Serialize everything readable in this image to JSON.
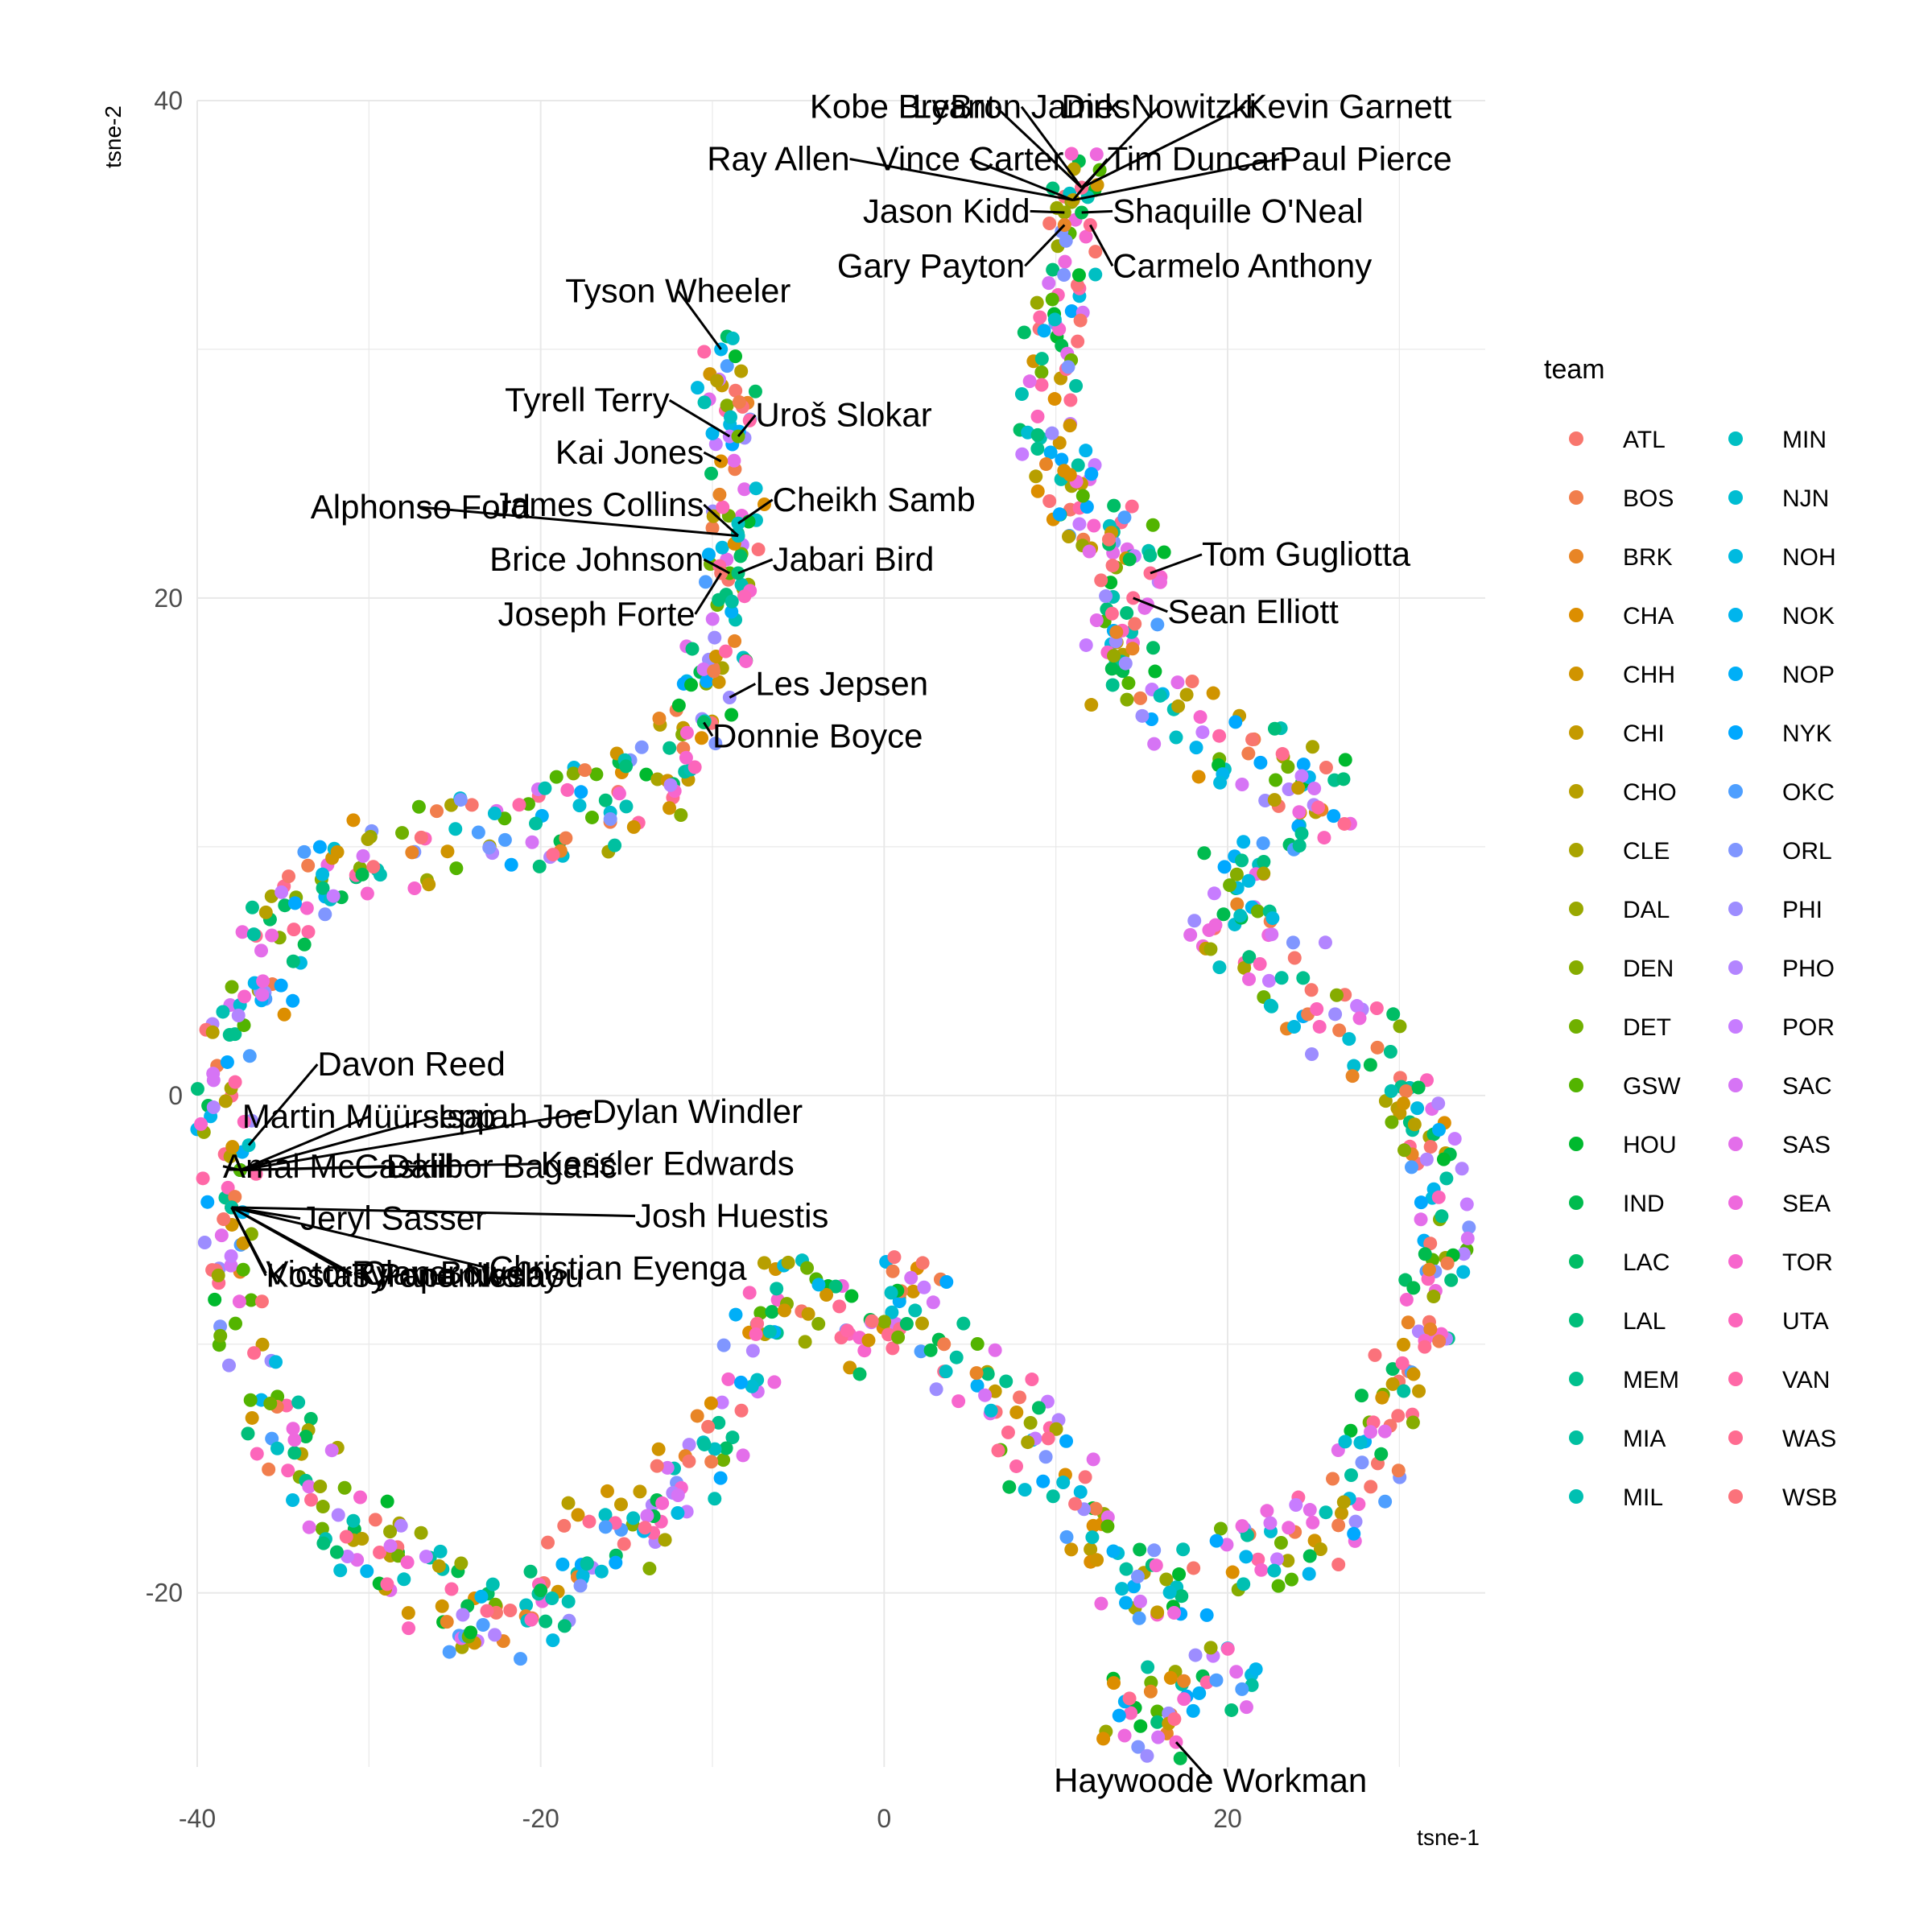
{
  "chart_data": {
    "type": "scatter",
    "xlabel": "tsne-1",
    "ylabel": "tsne-2",
    "xlim": [
      -40,
      35
    ],
    "ylim": [
      -27,
      40
    ],
    "xticks": [
      -40,
      -20,
      0,
      20
    ],
    "yticks": [
      -20,
      0,
      20,
      40
    ],
    "grid": true,
    "legend": {
      "title": "team",
      "placement": "right",
      "columns": 2
    },
    "teams": [
      {
        "name": "ATL",
        "color": "#F8766D"
      },
      {
        "name": "BOS",
        "color": "#F17E4D"
      },
      {
        "name": "BRK",
        "color": "#E88526"
      },
      {
        "name": "CHA",
        "color": "#DC8E00"
      },
      {
        "name": "CHH",
        "color": "#D09400"
      },
      {
        "name": "CHI",
        "color": "#C49A00"
      },
      {
        "name": "CHO",
        "color": "#B79F00"
      },
      {
        "name": "CLE",
        "color": "#A9A400"
      },
      {
        "name": "DAL",
        "color": "#99A800"
      },
      {
        "name": "DEN",
        "color": "#86AC00"
      },
      {
        "name": "DET",
        "color": "#70B000"
      },
      {
        "name": "GSW",
        "color": "#53B400"
      },
      {
        "name": "HOU",
        "color": "#00B92E"
      },
      {
        "name": "IND",
        "color": "#00BB4E"
      },
      {
        "name": "LAC",
        "color": "#00BD65"
      },
      {
        "name": "LAL",
        "color": "#00BE7A"
      },
      {
        "name": "MEM",
        "color": "#00C08D"
      },
      {
        "name": "MIA",
        "color": "#00C0A0"
      },
      {
        "name": "MIL",
        "color": "#00C0B2"
      },
      {
        "name": "MIN",
        "color": "#00BFC3"
      },
      {
        "name": "NJN",
        "color": "#00BDD2"
      },
      {
        "name": "NOH",
        "color": "#00BAE0"
      },
      {
        "name": "NOK",
        "color": "#00B5ED"
      },
      {
        "name": "NOP",
        "color": "#00AFF7"
      },
      {
        "name": "NYK",
        "color": "#00A8FF"
      },
      {
        "name": "OKC",
        "color": "#4E9FFF"
      },
      {
        "name": "ORL",
        "color": "#8096FF"
      },
      {
        "name": "PHI",
        "color": "#9D8DFF"
      },
      {
        "name": "PHO",
        "color": "#B385FF"
      },
      {
        "name": "POR",
        "color": "#C77CFF"
      },
      {
        "name": "SAC",
        "color": "#D674F5"
      },
      {
        "name": "SAS",
        "color": "#E36EEA"
      },
      {
        "name": "SEA",
        "color": "#EE69DD"
      },
      {
        "name": "TOR",
        "color": "#F766CD"
      },
      {
        "name": "UTA",
        "color": "#FC66BB"
      },
      {
        "name": "VAN",
        "color": "#FF68A7"
      },
      {
        "name": "WAS",
        "color": "#FF6C91"
      },
      {
        "name": "WSB",
        "color": "#FB727B"
      }
    ],
    "path_points": [
      [
        11.5,
        37
      ],
      [
        11,
        35
      ],
      [
        10.5,
        33
      ],
      [
        10,
        31
      ],
      [
        9.5,
        29
      ],
      [
        9.5,
        27
      ],
      [
        10,
        25
      ],
      [
        11,
        24
      ],
      [
        13,
        23.5
      ],
      [
        14.5,
        22
      ],
      [
        15,
        20.5
      ],
      [
        14,
        19
      ],
      [
        13,
        17.5
      ],
      [
        15,
        16
      ],
      [
        18,
        15
      ],
      [
        21,
        14
      ],
      [
        24,
        13
      ],
      [
        26,
        12
      ],
      [
        24,
        10
      ],
      [
        21,
        9
      ],
      [
        19,
        7.5
      ],
      [
        21,
        6
      ],
      [
        23.5,
        5
      ],
      [
        26,
        3.5
      ],
      [
        29,
        2
      ],
      [
        30.5,
        0
      ],
      [
        31.5,
        -2
      ],
      [
        32.5,
        -4
      ],
      [
        33,
        -6
      ],
      [
        32,
        -8
      ],
      [
        31,
        -10
      ],
      [
        30,
        -12
      ],
      [
        29,
        -14
      ],
      [
        27,
        -16
      ],
      [
        25,
        -17.5
      ],
      [
        22,
        -18.5
      ],
      [
        19,
        -19
      ],
      [
        16,
        -19.5
      ],
      [
        14,
        -19
      ],
      [
        12,
        -17
      ],
      [
        10,
        -15
      ],
      [
        8,
        -13.5
      ],
      [
        6,
        -12
      ],
      [
        4,
        -10
      ],
      [
        2,
        -8
      ],
      [
        0,
        -9
      ],
      [
        -2,
        -10
      ],
      [
        -4,
        -9
      ],
      [
        -6,
        -8
      ],
      [
        -8,
        -10.5
      ],
      [
        -9,
        -13
      ],
      [
        -11,
        -15
      ],
      [
        -13,
        -16.5
      ],
      [
        -15,
        -17.5
      ],
      [
        -17,
        -18
      ],
      [
        -19,
        -19.5
      ],
      [
        -21,
        -21
      ],
      [
        -23,
        -21.5
      ],
      [
        -25,
        -20.5
      ],
      [
        -27,
        -19.5
      ],
      [
        -29,
        -18.5
      ],
      [
        -31,
        -17.5
      ],
      [
        -33,
        -16
      ],
      [
        -35,
        -14
      ],
      [
        -36.5,
        -12
      ],
      [
        -37.5,
        -9
      ],
      [
        -38,
        -6
      ],
      [
        -38.5,
        -3
      ],
      [
        -38.5,
        0
      ],
      [
        -37.5,
        2
      ],
      [
        -36.5,
        4.5
      ],
      [
        -35.5,
        6.5
      ],
      [
        -34,
        8
      ],
      [
        -32,
        9.5
      ],
      [
        -29,
        10
      ],
      [
        -26,
        10
      ],
      [
        -23,
        10.5
      ],
      [
        -20,
        11
      ],
      [
        -17,
        11.5
      ],
      [
        -15,
        12
      ],
      [
        -13,
        13
      ],
      [
        -11.5,
        14
      ],
      [
        -10.5,
        16
      ],
      [
        -9.5,
        18
      ],
      [
        -9,
        20
      ],
      [
        -8.5,
        22
      ],
      [
        -9,
        24
      ],
      [
        -9,
        26
      ],
      [
        -9,
        28
      ],
      [
        -9.5,
        29.5
      ]
    ],
    "cluster_points": [
      [
        14,
        -24
      ],
      [
        14.5,
        -25
      ],
      [
        15,
        -23.5
      ],
      [
        15.5,
        -24.5
      ],
      [
        16,
        -25.5
      ],
      [
        17,
        -23
      ],
      [
        18,
        -24
      ],
      [
        19,
        -23.5
      ],
      [
        20,
        -22.5
      ],
      [
        21,
        -23
      ],
      [
        15,
        -26
      ],
      [
        16.5,
        -26
      ],
      [
        13.5,
        -25.5
      ],
      [
        18.5,
        -22
      ],
      [
        20.5,
        -24
      ],
      [
        17.5,
        -25
      ]
    ],
    "annotations": [
      {
        "label": "Kobe Bryant",
        "x": 11.5,
        "y": 36.5,
        "tx": 6.5,
        "ty": 39.3,
        "align": "end"
      },
      {
        "label": "LeBron James",
        "x": 11.5,
        "y": 36.5,
        "tx": 8,
        "ty": 39.3,
        "align": "middle"
      },
      {
        "label": "Dirk Nowitzki",
        "x": 11.5,
        "y": 36.5,
        "tx": 16,
        "ty": 39.3,
        "align": "middle"
      },
      {
        "label": "Kevin Garnett",
        "x": 11.5,
        "y": 36.5,
        "tx": 21,
        "ty": 39.3,
        "align": "start"
      },
      {
        "label": "Ray Allen",
        "x": 11,
        "y": 36,
        "tx": -2,
        "ty": 37.2,
        "align": "end"
      },
      {
        "label": "Vince Carter",
        "x": 11,
        "y": 36,
        "tx": 5,
        "ty": 37.2,
        "align": "middle"
      },
      {
        "label": "Tim Duncan",
        "x": 11,
        "y": 36,
        "tx": 13,
        "ty": 37.2,
        "align": "start"
      },
      {
        "label": "Paul Pierce",
        "x": 11,
        "y": 36,
        "tx": 23,
        "ty": 37.2,
        "align": "start"
      },
      {
        "label": "Jason Kidd",
        "x": 10.5,
        "y": 35.5,
        "tx": 8.5,
        "ty": 35.1,
        "align": "end"
      },
      {
        "label": "Shaquille O'Neal",
        "x": 11.5,
        "y": 35.5,
        "tx": 13.3,
        "ty": 35.1,
        "align": "start"
      },
      {
        "label": "Gary Payton",
        "x": 10.5,
        "y": 35,
        "tx": 8.2,
        "ty": 32.9,
        "align": "end"
      },
      {
        "label": "Carmelo Anthony",
        "x": 12,
        "y": 35,
        "tx": 13.3,
        "ty": 32.9,
        "align": "start"
      },
      {
        "label": "Tyson Wheeler",
        "x": -9.5,
        "y": 30,
        "tx": -12,
        "ty": 31.9,
        "align": "middle"
      },
      {
        "label": "Tyrell Terry",
        "x": -9,
        "y": 26.5,
        "tx": -12.5,
        "ty": 27.5,
        "align": "end"
      },
      {
        "label": "Uroš Slokar",
        "x": -8.5,
        "y": 26.5,
        "tx": -7.5,
        "ty": 26.9,
        "align": "start"
      },
      {
        "label": "Kai Jones",
        "x": -9.5,
        "y": 25.5,
        "tx": -10.5,
        "ty": 25.4,
        "align": "end"
      },
      {
        "label": "Alphonso Ford",
        "x": -8.5,
        "y": 22.5,
        "tx": -27,
        "ty": 23.2,
        "align": "middle"
      },
      {
        "label": "James Collins",
        "x": -8.5,
        "y": 22.5,
        "tx": -10.5,
        "ty": 23.3,
        "align": "end"
      },
      {
        "label": "Cheikh Samb",
        "x": -8.5,
        "y": 23,
        "tx": -6.5,
        "ty": 23.5,
        "align": "start"
      },
      {
        "label": "Brice Johnson",
        "x": -9,
        "y": 21,
        "tx": -10.5,
        "ty": 21.1,
        "align": "end"
      },
      {
        "label": "Jabari Bird",
        "x": -8.5,
        "y": 21,
        "tx": -6.5,
        "ty": 21.1,
        "align": "start"
      },
      {
        "label": "Joseph Forte",
        "x": -9.5,
        "y": 21,
        "tx": -11,
        "ty": 18.9,
        "align": "end"
      },
      {
        "label": "Tom Gugliotta",
        "x": 15.5,
        "y": 21,
        "tx": 18.5,
        "ty": 21.3,
        "align": "start"
      },
      {
        "label": "Sean Elliott",
        "x": 14.5,
        "y": 20,
        "tx": 16.5,
        "ty": 19,
        "align": "start"
      },
      {
        "label": "Les Jepsen",
        "x": -9,
        "y": 16,
        "tx": -7.5,
        "ty": 16.1,
        "align": "start"
      },
      {
        "label": "Donnie Boyce",
        "x": -10.5,
        "y": 15,
        "tx": -10,
        "ty": 14,
        "align": "start"
      },
      {
        "label": "Davon Reed",
        "x": -37,
        "y": -2,
        "tx": -33,
        "ty": 0.8,
        "align": "start"
      },
      {
        "label": "Martin Müürsepp",
        "x": -37.5,
        "y": -3,
        "tx": -30,
        "ty": -1.3,
        "align": "middle"
      },
      {
        "label": "Isaiah Joe",
        "x": -37.5,
        "y": -3,
        "tx": -26,
        "ty": -1.3,
        "align": "start"
      },
      {
        "label": "Dylan Windler",
        "x": -37.5,
        "y": -3,
        "tx": -17,
        "ty": -1.1,
        "align": "start"
      },
      {
        "label": "Amal McCaskill",
        "x": -37.5,
        "y": -3,
        "tx": -38.5,
        "ty": -3.3,
        "align": "start"
      },
      {
        "label": "Dalibor Bagarić",
        "x": -37.5,
        "y": -3,
        "tx": -29,
        "ty": -3.3,
        "align": "start"
      },
      {
        "label": "Kessler Edwards",
        "x": -37.5,
        "y": -3,
        "tx": -20,
        "ty": -3.2,
        "align": "start"
      },
      {
        "label": "Josh Huestis",
        "x": -38,
        "y": -4.5,
        "tx": -14.5,
        "ty": -5.3,
        "align": "start"
      },
      {
        "label": "Jeryl Sasser",
        "x": -38,
        "y": -4.5,
        "tx": -34,
        "ty": -5.4,
        "align": "start"
      },
      {
        "label": "Christian Eyenga",
        "x": -38,
        "y": -4.5,
        "tx": -23,
        "ty": -7.4,
        "align": "start"
      },
      {
        "label": "Victor Claver",
        "x": -38,
        "y": -4.5,
        "tx": -36,
        "ty": -7.6,
        "align": "start"
      },
      {
        "label": "Ryan Bowen",
        "x": -38,
        "y": -4.5,
        "tx": -31,
        "ty": -7.6,
        "align": "start"
      },
      {
        "label": "Kostas Papanikolaou",
        "x": -38,
        "y": -4.5,
        "tx": -36,
        "ty": -7.7,
        "align": "start"
      },
      {
        "label": "Tyrone Nesby",
        "x": -38,
        "y": -4.5,
        "tx": -31,
        "ty": -7.7,
        "align": "start"
      },
      {
        "label": "Haywoode Workman",
        "x": 17,
        "y": -26,
        "tx": 19,
        "ty": -28,
        "align": "middle"
      }
    ]
  }
}
